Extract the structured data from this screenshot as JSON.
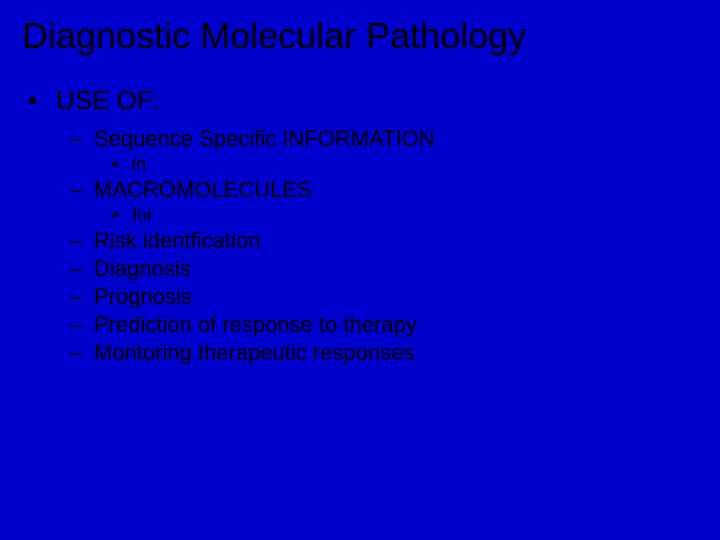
{
  "slide": {
    "background_color": "#0000cc",
    "text_color": "#000000",
    "font_family": "Verdana, sans-serif",
    "title": "Diagnostic Molecular Pathology",
    "title_fontsize": 36,
    "bullets": {
      "level1_marker": "•",
      "level2_marker": "–",
      "level3_marker": "•",
      "level1_fontsize": 26,
      "level2_fontsize": 22,
      "level3_fontsize": 18
    },
    "body": {
      "l1_a": "USE OF:",
      "l2_a": "Sequence Specific INFORMATION",
      "l3_a": "in",
      "l2_b": "MACROMOLECULES",
      "l3_b": "for",
      "l2_c": "Risk identfication",
      "l2_d": "Diagnosis",
      "l2_e": "Prognosis",
      "l2_f": "Prediction of response to therapy",
      "l2_g": "Montoring therapeutic responses"
    }
  }
}
